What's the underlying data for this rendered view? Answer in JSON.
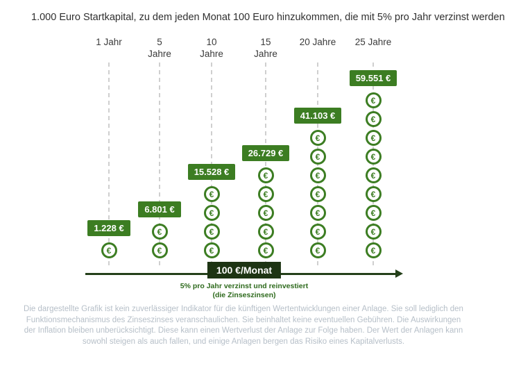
{
  "title": "1.000 Euro Startkapital, zu dem jeden Monat 100 Euro hinzukommen, die mit 5% pro Jahr verzinst werden",
  "chart_data": {
    "type": "bar",
    "title": "1.000 Euro Startkapital, zu dem jeden Monat 100 Euro hinzukommen, die mit 5% pro Jahr verzinst werden",
    "categories": [
      "1 Jahr",
      "5 Jahre",
      "10 Jahre",
      "15 Jahre",
      "20 Jahre",
      "25 Jahre"
    ],
    "values": [
      1228,
      6801,
      15528,
      26729,
      41103,
      59551
    ],
    "value_labels": [
      "1.228 €",
      "6.801 €",
      "15.528 €",
      "26.729 €",
      "41.103 €",
      "59.551 €"
    ],
    "xlabel": "100 €/Monat",
    "ylabel": "",
    "annotations": [
      "5% pro Jahr verzinst und reinvestiert",
      "(die Zinseszinsen)"
    ],
    "legend": false,
    "grid": false,
    "coin_symbol": "€",
    "columns": [
      {
        "id": "1-jahr",
        "label": "1 Jahr",
        "label_display": "1 Jahr",
        "value": 1228,
        "value_label": "1.228 €",
        "coins": 1
      },
      {
        "id": "5-jahre",
        "label": "5 Jahre",
        "label_display": "5\nJahre",
        "value": 6801,
        "value_label": "6.801 €",
        "coins": 2
      },
      {
        "id": "10-jahre",
        "label": "10 Jahre",
        "label_display": "10\nJahre",
        "value": 15528,
        "value_label": "15.528 €",
        "coins": 4
      },
      {
        "id": "15-jahre",
        "label": "15 Jahre",
        "label_display": "15\nJahre",
        "value": 26729,
        "value_label": "26.729 €",
        "coins": 5
      },
      {
        "id": "20-jahre",
        "label": "20 Jahre",
        "label_display": "20 Jahre",
        "value": 41103,
        "value_label": "41.103 €",
        "coins": 7
      },
      {
        "id": "25-jahre",
        "label": "25 Jahre",
        "label_display": "25 Jahre",
        "value": 59551,
        "value_label": "59.551 €",
        "coins": 9
      }
    ]
  },
  "footer": {
    "monthly_label": "100 €/Monat",
    "note_line1": "5% pro Jahr verzinst und reinvestiert",
    "note_line2": "(die Zinseszinsen)",
    "disclaimer": "Die dargestellte Grafik ist kein zuverlässiger Indikator für die künftigen Wertentwicklungen einer Anlage. Sie soll lediglich den Funktionsmechanismus des Zinseszinses veranschaulichen. Sie beinhaltet keine eventuellen Gebühren. Die Auswirkungen der Inflation bleiben unberücksichtigt. Diese kann einen Wertverlust der Anlage zur Folge haben. Der Wert der Anlagen kann sowohl steigen als auch fallen, und einige Anlagen bergen das Risiko eines Kapitalverlusts."
  },
  "colors": {
    "badge_green": "#3c7d22",
    "coin_green": "#3c7d22",
    "axis_dark_green": "#24401a",
    "monthly_badge_dark": "#1d3413",
    "note_green": "#2e6a1d",
    "disclaimer_gray": "#b6bfc8",
    "dashed_line_gray": "#cfcfcf"
  }
}
